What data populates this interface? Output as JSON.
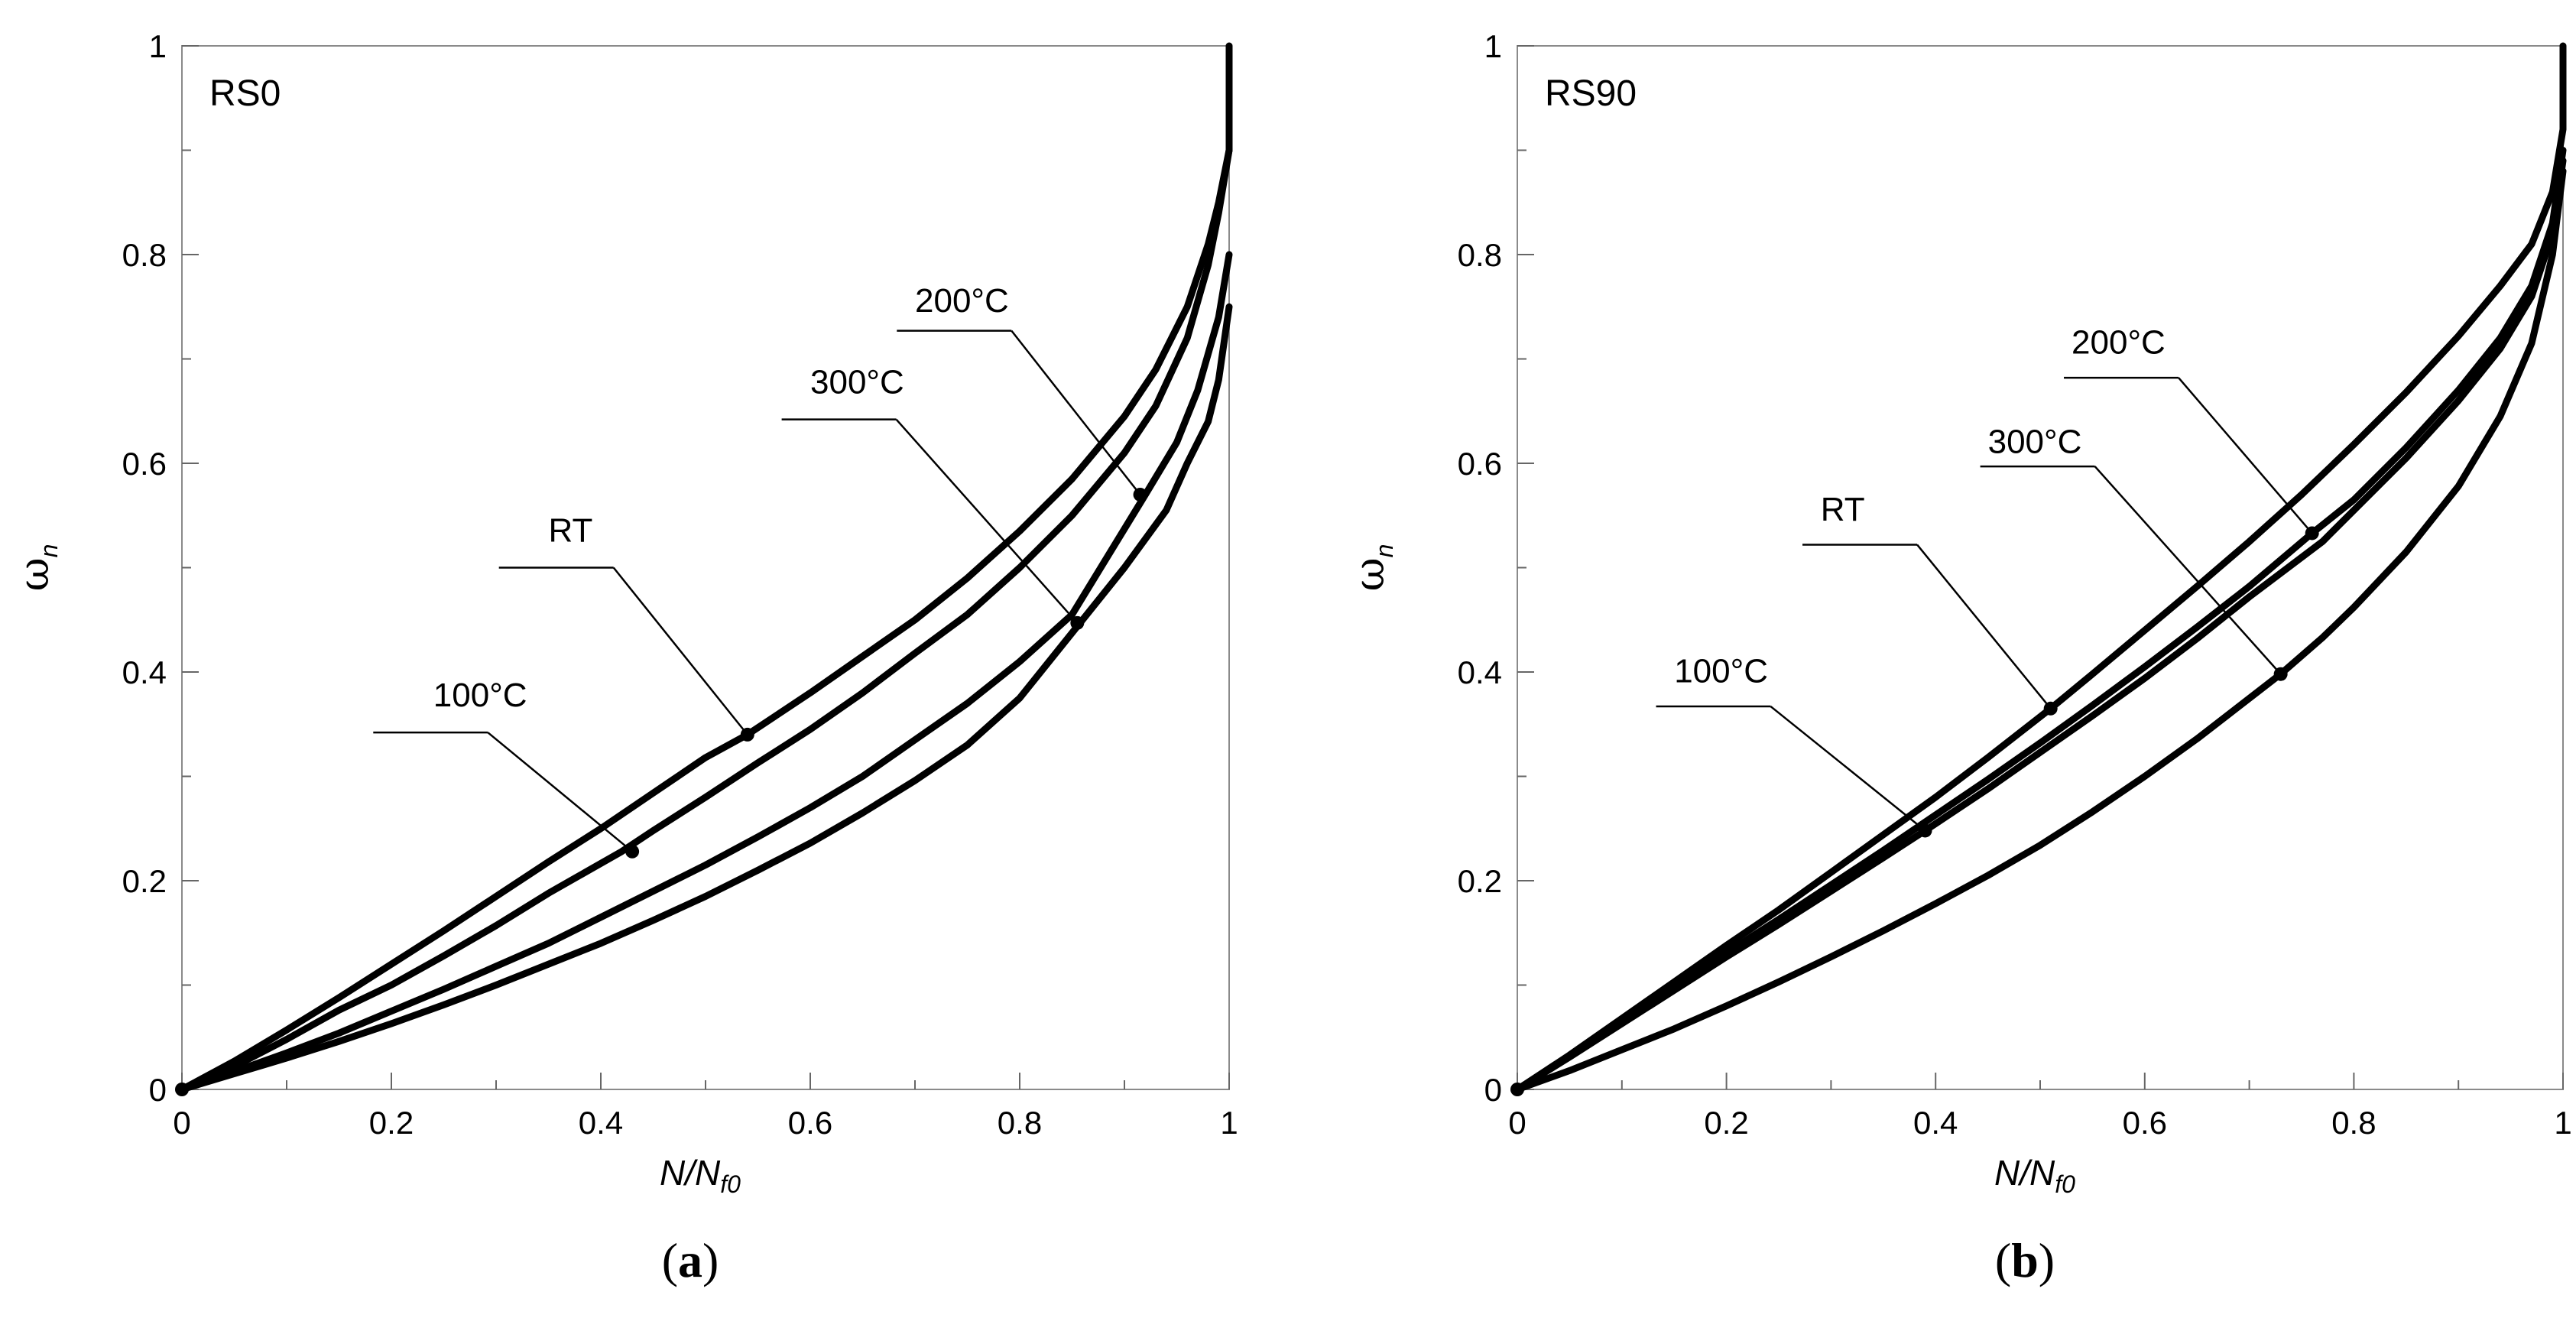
{
  "chart_data": [
    {
      "type": "line",
      "panel_tag": "RS0",
      "caption_open": "(",
      "caption_letter": "a",
      "caption_close": ")",
      "xlabel_main": "N/N",
      "xlabel_sub": "f0",
      "ylabel_main": "ω",
      "ylabel_sub": "n",
      "xlim": [
        0,
        1
      ],
      "ylim": [
        0,
        1
      ],
      "x_ticks": [
        "0",
        "0.2",
        "0.4",
        "0.6",
        "0.8",
        "1"
      ],
      "y_ticks": [
        "0",
        "0.2",
        "0.4",
        "0.6",
        "0.8",
        "1"
      ],
      "grid": false,
      "series": [
        {
          "name": "RT",
          "x": [
            0,
            0.05,
            0.1,
            0.15,
            0.2,
            0.25,
            0.3,
            0.35,
            0.4,
            0.45,
            0.5,
            0.54,
            0.6,
            0.65,
            0.7,
            0.75,
            0.8,
            0.85,
            0.9,
            0.93,
            0.96,
            0.98,
            0.99,
            1.0,
            1.0
          ],
          "y": [
            0,
            0.027,
            0.057,
            0.088,
            0.12,
            0.152,
            0.185,
            0.218,
            0.25,
            0.284,
            0.318,
            0.34,
            0.38,
            0.415,
            0.45,
            0.49,
            0.535,
            0.585,
            0.645,
            0.69,
            0.75,
            0.81,
            0.85,
            0.9,
            1.0
          ],
          "marker": {
            "x": 0.54,
            "y": 0.34
          }
        },
        {
          "name": "100°C",
          "x": [
            0,
            0.05,
            0.1,
            0.15,
            0.2,
            0.25,
            0.3,
            0.35,
            0.42,
            0.45,
            0.5,
            0.55,
            0.6,
            0.65,
            0.7,
            0.75,
            0.8,
            0.85,
            0.9,
            0.93,
            0.96,
            0.98,
            0.99,
            1.0
          ],
          "y": [
            0,
            0.022,
            0.048,
            0.076,
            0.1,
            0.128,
            0.157,
            0.188,
            0.228,
            0.248,
            0.28,
            0.313,
            0.345,
            0.38,
            0.418,
            0.455,
            0.5,
            0.55,
            0.61,
            0.655,
            0.72,
            0.79,
            0.84,
            0.9
          ]
        },
        {
          "name": "200°C",
          "x": [
            0,
            0.05,
            0.1,
            0.15,
            0.2,
            0.25,
            0.3,
            0.35,
            0.4,
            0.45,
            0.5,
            0.55,
            0.6,
            0.65,
            0.7,
            0.75,
            0.8,
            0.85,
            0.92,
            0.95,
            0.97,
            0.99,
            1.0
          ],
          "y": [
            0,
            0.017,
            0.035,
            0.054,
            0.075,
            0.096,
            0.118,
            0.14,
            0.165,
            0.19,
            0.215,
            0.242,
            0.27,
            0.3,
            0.335,
            0.37,
            0.41,
            0.455,
            0.57,
            0.62,
            0.67,
            0.74,
            0.8
          ]
        },
        {
          "name": "300°C",
          "x": [
            0,
            0.05,
            0.1,
            0.15,
            0.2,
            0.25,
            0.3,
            0.35,
            0.4,
            0.45,
            0.5,
            0.55,
            0.6,
            0.65,
            0.7,
            0.75,
            0.8,
            0.86,
            0.9,
            0.94,
            0.96,
            0.98,
            0.99,
            1.0
          ],
          "y": [
            0,
            0.015,
            0.03,
            0.046,
            0.063,
            0.081,
            0.1,
            0.12,
            0.14,
            0.162,
            0.185,
            0.21,
            0.236,
            0.265,
            0.296,
            0.33,
            0.375,
            0.45,
            0.5,
            0.555,
            0.6,
            0.64,
            0.68,
            0.75
          ]
        }
      ],
      "annotations": [
        {
          "label": "RT",
          "text_x": 0.35,
          "text_y": 0.525,
          "line_from": [
            0.31,
            0.5
          ],
          "line_to": [
            0.54,
            0.34
          ]
        },
        {
          "label": "100°C",
          "text_x": 0.24,
          "text_y": 0.367,
          "line_from": [
            0.19,
            0.342
          ],
          "line_to": [
            0.43,
            0.228
          ]
        },
        {
          "label": "200°C",
          "text_x": 0.7,
          "text_y": 0.745,
          "line_from": [
            0.69,
            0.727
          ],
          "line_to": [
            0.915,
            0.57
          ]
        },
        {
          "label": "300°C",
          "text_x": 0.6,
          "text_y": 0.667,
          "line_from": [
            0.58,
            0.642
          ],
          "line_to": [
            0.855,
            0.447
          ]
        }
      ]
    },
    {
      "type": "line",
      "panel_tag": "RS90",
      "caption_open": "(",
      "caption_letter": "b",
      "caption_close": ")",
      "xlabel_main": "N/N",
      "xlabel_sub": "f0",
      "ylabel_main": "ω",
      "ylabel_sub": "n",
      "xlim": [
        0,
        1
      ],
      "ylim": [
        0,
        1
      ],
      "x_ticks": [
        "0",
        "0.2",
        "0.4",
        "0.6",
        "0.8",
        "1"
      ],
      "y_ticks": [
        "0",
        "0.2",
        "0.4",
        "0.6",
        "0.8",
        "1"
      ],
      "grid": false,
      "series": [
        {
          "name": "RT",
          "x": [
            0,
            0.05,
            0.1,
            0.15,
            0.2,
            0.25,
            0.3,
            0.35,
            0.4,
            0.45,
            0.51,
            0.55,
            0.6,
            0.65,
            0.7,
            0.75,
            0.8,
            0.85,
            0.9,
            0.94,
            0.97,
            0.99,
            1.0,
            1.0
          ],
          "y": [
            0,
            0.033,
            0.068,
            0.103,
            0.138,
            0.172,
            0.208,
            0.244,
            0.28,
            0.318,
            0.365,
            0.398,
            0.44,
            0.482,
            0.525,
            0.57,
            0.618,
            0.668,
            0.722,
            0.77,
            0.81,
            0.86,
            0.92,
            1.0
          ],
          "marker": {
            "x": 0.51,
            "y": 0.365
          }
        },
        {
          "name": "100°C",
          "x": [
            0,
            0.05,
            0.1,
            0.15,
            0.2,
            0.25,
            0.3,
            0.35,
            0.39,
            0.45,
            0.5,
            0.55,
            0.6,
            0.65,
            0.7,
            0.77,
            0.8,
            0.85,
            0.9,
            0.94,
            0.97,
            0.99,
            1.0
          ],
          "y": [
            0,
            0.031,
            0.063,
            0.095,
            0.127,
            0.158,
            0.19,
            0.222,
            0.248,
            0.288,
            0.323,
            0.358,
            0.394,
            0.432,
            0.472,
            0.525,
            0.555,
            0.605,
            0.66,
            0.71,
            0.76,
            0.82,
            0.89
          ]
        },
        {
          "name": "200°C",
          "x": [
            0,
            0.05,
            0.1,
            0.15,
            0.2,
            0.25,
            0.3,
            0.35,
            0.4,
            0.45,
            0.5,
            0.55,
            0.6,
            0.65,
            0.7,
            0.76,
            0.8,
            0.85,
            0.9,
            0.94,
            0.97,
            0.99,
            1.0
          ],
          "y": [
            0,
            0.032,
            0.065,
            0.098,
            0.131,
            0.163,
            0.196,
            0.229,
            0.263,
            0.297,
            0.332,
            0.368,
            0.405,
            0.443,
            0.482,
            0.533,
            0.565,
            0.615,
            0.67,
            0.72,
            0.77,
            0.83,
            0.9
          ]
        },
        {
          "name": "300°C",
          "x": [
            0,
            0.05,
            0.1,
            0.15,
            0.2,
            0.25,
            0.3,
            0.35,
            0.4,
            0.45,
            0.5,
            0.55,
            0.6,
            0.65,
            0.73,
            0.77,
            0.8,
            0.85,
            0.9,
            0.94,
            0.97,
            0.99,
            1.0
          ],
          "y": [
            0,
            0.018,
            0.038,
            0.058,
            0.08,
            0.103,
            0.127,
            0.152,
            0.178,
            0.205,
            0.234,
            0.266,
            0.3,
            0.336,
            0.398,
            0.433,
            0.462,
            0.515,
            0.578,
            0.645,
            0.715,
            0.8,
            0.88
          ]
        }
      ],
      "annotations": [
        {
          "label": "RT",
          "text_x": 0.29,
          "text_y": 0.545,
          "line_from": [
            0.28,
            0.522
          ],
          "line_to": [
            0.51,
            0.365
          ]
        },
        {
          "label": "100°C",
          "text_x": 0.15,
          "text_y": 0.39,
          "line_from": [
            0.14,
            0.367
          ],
          "line_to": [
            0.39,
            0.248
          ]
        },
        {
          "label": "200°C",
          "text_x": 0.53,
          "text_y": 0.705,
          "line_from": [
            0.53,
            0.682
          ],
          "line_to": [
            0.76,
            0.533
          ]
        },
        {
          "label": "300°C",
          "text_x": 0.45,
          "text_y": 0.61,
          "line_from": [
            0.45,
            0.597
          ],
          "line_to": [
            0.73,
            0.398
          ]
        }
      ]
    }
  ]
}
